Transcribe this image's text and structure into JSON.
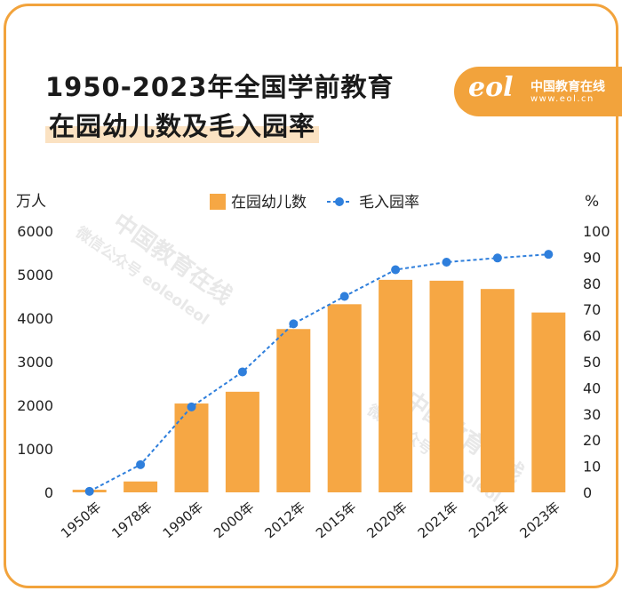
{
  "title_line1": "1950-2023年全国学前教育",
  "title_line2": "在园幼儿数及毛入园率",
  "logo": {
    "mark": "eol",
    "name": "中国教育在线",
    "url": "www.eol.cn"
  },
  "watermark": {
    "line1": "中国教育在线",
    "line2": "微信公众号 eoleoleol"
  },
  "colors": {
    "accent": "#f2a33c",
    "bar": "#f6a744",
    "line": "#2f7fdc"
  },
  "chart_data": {
    "type": "bar",
    "categories": [
      "1950年",
      "1978年",
      "1990年",
      "2000年",
      "2012年",
      "2015年",
      "2020年",
      "2021年",
      "2022年",
      "2023年"
    ],
    "series": [
      {
        "name": "在园幼儿数",
        "type": "bar",
        "axis": "left",
        "values": [
          60,
          250,
          2040,
          2310,
          3750,
          4320,
          4880,
          4860,
          4670,
          4130
        ]
      },
      {
        "name": "毛入园率",
        "type": "line",
        "axis": "right",
        "values": [
          0.4,
          10.6,
          32.7,
          46.1,
          64.5,
          75.0,
          85.2,
          88.1,
          89.7,
          91.1
        ]
      }
    ],
    "ylabel_left": "万人",
    "ylabel_right": "%",
    "ylim_left": [
      0,
      6000
    ],
    "ylim_right": [
      0,
      100
    ],
    "yticks_left": [
      "0",
      "1000",
      "2000",
      "3000",
      "4000",
      "5000",
      "6000"
    ],
    "yticks_right": [
      "0",
      "10",
      "20",
      "30",
      "40",
      "50",
      "60",
      "70",
      "80",
      "90",
      "100"
    ],
    "legend": "top-center",
    "grid": false
  }
}
